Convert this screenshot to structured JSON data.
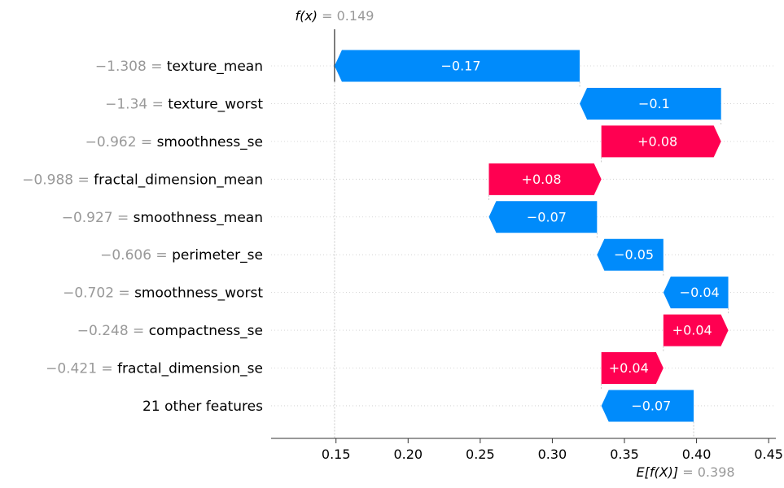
{
  "chart_data": {
    "type": "waterfall",
    "title": "",
    "xlabel": "",
    "ylabel": "",
    "xlim": [
      0.105,
      0.455
    ],
    "x_ticks": [
      "0.15",
      "0.20",
      "0.25",
      "0.30",
      "0.35",
      "0.40",
      "0.45"
    ],
    "x_tick_values": [
      0.15,
      0.2,
      0.25,
      0.3,
      0.35,
      0.4,
      0.45
    ],
    "fx": {
      "label": "f(x)",
      "value_text": "= 0.149",
      "value": 0.149
    },
    "efx": {
      "label": "E[f(X)]",
      "value_text": "= 0.398",
      "value": 0.398
    },
    "colors": {
      "positive": "#ff0051",
      "negative": "#008bfb",
      "value_text": "#999999",
      "label_text": "#000000"
    },
    "features": [
      {
        "value_text": "−1.308 =",
        "name": "texture_mean",
        "contribution_label": "−0.17",
        "start": 0.319,
        "end": 0.149
      },
      {
        "value_text": "−1.34 =",
        "name": "texture_worst",
        "contribution_label": "−0.1",
        "start": 0.417,
        "end": 0.319
      },
      {
        "value_text": "−0.962 =",
        "name": "smoothness_se",
        "contribution_label": "+0.08",
        "start": 0.334,
        "end": 0.417
      },
      {
        "value_text": "−0.988 =",
        "name": "fractal_dimension_mean",
        "contribution_label": "+0.08",
        "start": 0.256,
        "end": 0.334
      },
      {
        "value_text": "−0.927 =",
        "name": "smoothness_mean",
        "contribution_label": "−0.07",
        "start": 0.331,
        "end": 0.256
      },
      {
        "value_text": "−0.606 =",
        "name": "perimeter_se",
        "contribution_label": "−0.05",
        "start": 0.377,
        "end": 0.331
      },
      {
        "value_text": "−0.702 =",
        "name": "smoothness_worst",
        "contribution_label": "−0.04",
        "start": 0.422,
        "end": 0.377
      },
      {
        "value_text": "−0.248 =",
        "name": "compactness_se",
        "contribution_label": "+0.04",
        "start": 0.377,
        "end": 0.422
      },
      {
        "value_text": "−0.421 =",
        "name": "fractal_dimension_se",
        "contribution_label": "+0.04",
        "start": 0.334,
        "end": 0.377
      },
      {
        "value_text": "",
        "name": "21 other features",
        "contribution_label": "−0.07",
        "start": 0.398,
        "end": 0.334
      }
    ]
  }
}
